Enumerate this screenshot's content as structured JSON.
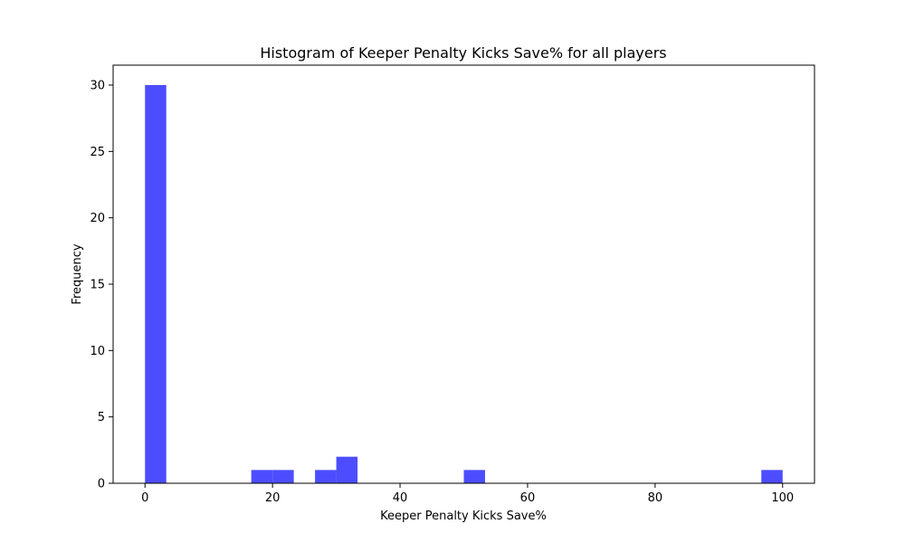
{
  "chart_data": {
    "type": "bar",
    "title": "Histogram of Keeper Penalty Kicks Save% for all players",
    "xlabel": "Keeper Penalty Kicks Save%",
    "ylabel": "Frequency",
    "xlim": [
      -5,
      105
    ],
    "ylim": [
      0,
      31.5
    ],
    "x_ticks": [
      0,
      20,
      40,
      60,
      80,
      100
    ],
    "y_ticks": [
      0,
      5,
      10,
      15,
      20,
      25,
      30
    ],
    "bin_width": 3.333,
    "bins": [
      {
        "start": 0.0,
        "end": 3.333,
        "count": 30
      },
      {
        "start": 16.667,
        "end": 20.0,
        "count": 1
      },
      {
        "start": 20.0,
        "end": 23.333,
        "count": 1
      },
      {
        "start": 26.667,
        "end": 30.0,
        "count": 1
      },
      {
        "start": 30.0,
        "end": 33.333,
        "count": 2
      },
      {
        "start": 50.0,
        "end": 53.333,
        "count": 1
      },
      {
        "start": 96.667,
        "end": 100.0,
        "count": 1
      }
    ],
    "bar_color": "#4d4dff",
    "grid": false
  }
}
